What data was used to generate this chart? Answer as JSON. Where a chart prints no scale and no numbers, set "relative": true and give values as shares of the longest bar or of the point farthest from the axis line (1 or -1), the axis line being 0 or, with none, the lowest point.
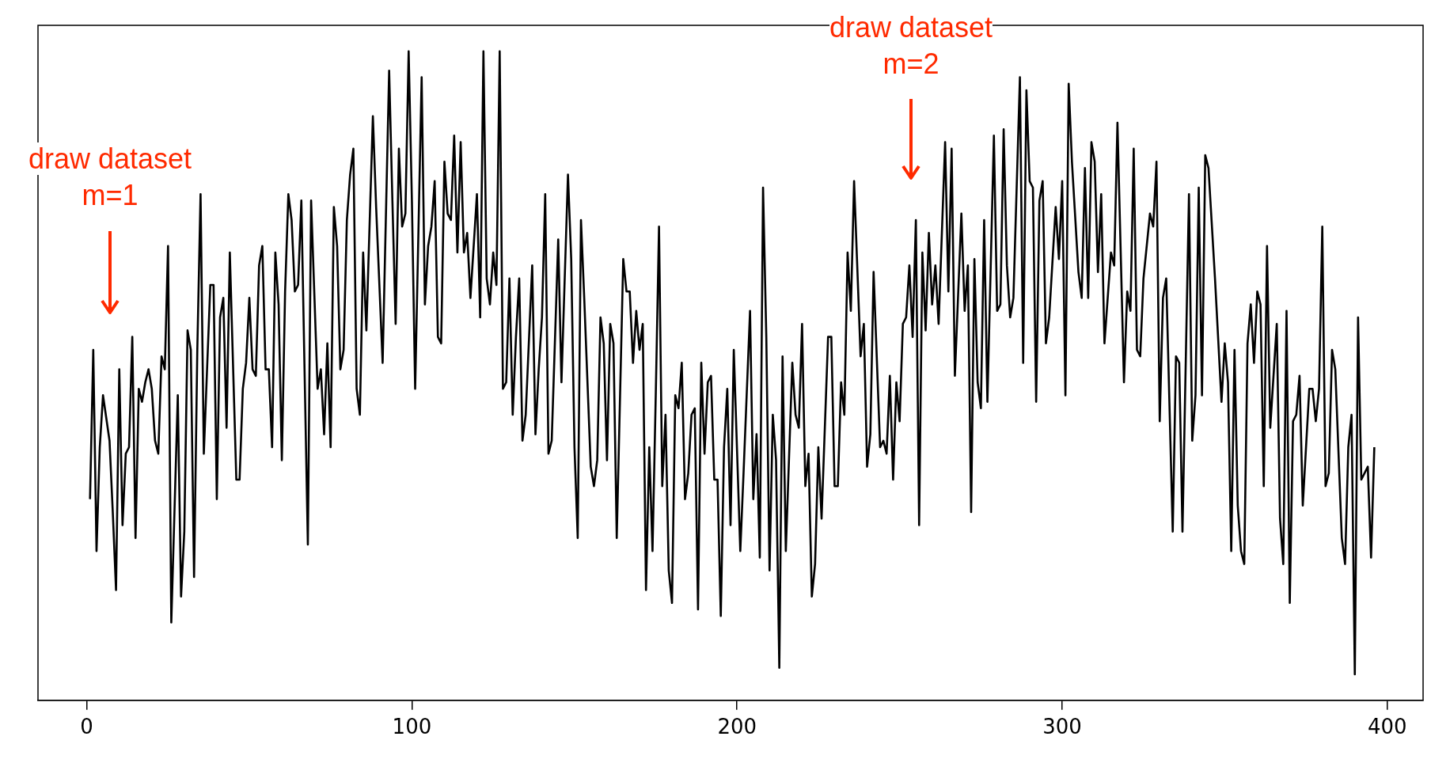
{
  "chart_data": {
    "type": "line",
    "relative": true,
    "color": "#000000",
    "marker": "none",
    "line_style": "solid",
    "grid": false,
    "legend": false,
    "x": [
      1,
      2,
      3,
      4,
      5,
      7,
      8,
      9,
      10,
      11,
      12,
      13,
      14,
      15,
      16,
      17,
      18,
      19,
      20,
      21,
      22,
      23,
      24,
      25,
      26,
      28,
      29,
      30,
      31,
      32,
      33,
      34,
      35,
      36,
      38,
      39,
      40,
      41,
      42,
      43,
      44,
      46,
      47,
      48,
      49,
      50,
      51,
      52,
      53,
      54,
      55,
      56,
      57,
      58,
      59,
      60,
      61,
      62,
      63,
      64,
      65,
      66,
      68,
      69,
      71,
      72,
      73,
      74,
      75,
      76,
      77,
      78,
      79,
      80,
      81,
      82,
      83,
      84,
      85,
      86,
      88,
      89,
      91,
      93,
      94,
      95,
      96,
      97,
      98,
      99,
      100,
      101,
      103,
      104,
      105,
      106,
      107,
      108,
      109,
      110,
      111,
      112,
      113,
      114,
      115,
      116,
      117,
      118,
      120,
      121,
      122,
      123,
      124,
      125,
      126,
      127,
      128,
      129,
      130,
      131,
      132,
      133,
      134,
      135,
      137,
      138,
      139,
      140,
      141,
      142,
      143,
      145,
      146,
      147,
      148,
      149,
      150,
      151,
      152,
      153,
      155,
      156,
      157,
      158,
      159,
      160,
      161,
      162,
      163,
      165,
      166,
      167,
      168,
      169,
      170,
      171,
      172,
      173,
      174,
      175,
      176,
      177,
      178,
      179,
      180,
      181,
      182,
      183,
      184,
      185,
      186,
      187,
      188,
      189,
      190,
      191,
      192,
      193,
      194,
      195,
      196,
      197,
      198,
      199,
      201,
      202,
      204,
      205,
      206,
      207,
      208,
      209,
      210,
      211,
      212,
      213,
      214,
      215,
      217,
      218,
      219,
      220,
      221,
      222,
      223,
      224,
      225,
      226,
      228,
      229,
      230,
      231,
      232,
      233,
      234,
      235,
      236,
      238,
      239,
      240,
      241,
      242,
      244,
      245,
      246,
      247,
      248,
      249,
      250,
      251,
      252,
      253,
      254,
      255,
      256,
      257,
      258,
      259,
      260,
      261,
      262,
      264,
      265,
      266,
      267,
      269,
      270,
      271,
      272,
      273,
      274,
      275,
      276,
      277,
      279,
      280,
      281,
      282,
      283,
      284,
      285,
      287,
      288,
      289,
      290,
      291,
      292,
      293,
      294,
      295,
      296,
      298,
      299,
      300,
      301,
      302,
      303,
      305,
      306,
      307,
      308,
      309,
      310,
      311,
      312,
      313,
      315,
      316,
      317,
      319,
      320,
      321,
      322,
      323,
      324,
      325,
      327,
      328,
      329,
      330,
      331,
      332,
      334,
      335,
      336,
      337,
      339,
      340,
      341,
      342,
      343,
      344,
      345,
      347,
      349,
      350,
      351,
      352,
      353,
      354,
      355,
      356,
      357,
      358,
      359,
      360,
      361,
      362,
      363,
      364,
      366,
      367,
      368,
      369,
      370,
      371,
      372,
      373,
      374,
      376,
      377,
      378,
      379,
      380,
      381,
      382,
      383,
      384,
      386,
      387,
      388,
      389,
      390,
      391,
      392,
      394,
      395,
      396
    ],
    "values": [
      0.31,
      0.54,
      0.23,
      0.39,
      0.47,
      0.4,
      0.29,
      0.17,
      0.51,
      0.27,
      0.38,
      0.39,
      0.56,
      0.25,
      0.48,
      0.46,
      0.49,
      0.51,
      0.48,
      0.4,
      0.38,
      0.53,
      0.51,
      0.7,
      0.12,
      0.47,
      0.16,
      0.26,
      0.57,
      0.54,
      0.19,
      0.54,
      0.78,
      0.38,
      0.64,
      0.64,
      0.31,
      0.59,
      0.62,
      0.42,
      0.69,
      0.34,
      0.34,
      0.48,
      0.52,
      0.62,
      0.51,
      0.5,
      0.67,
      0.7,
      0.51,
      0.51,
      0.39,
      0.69,
      0.61,
      0.37,
      0.63,
      0.78,
      0.74,
      0.63,
      0.64,
      0.77,
      0.24,
      0.77,
      0.48,
      0.51,
      0.41,
      0.55,
      0.39,
      0.76,
      0.7,
      0.51,
      0.54,
      0.74,
      0.81,
      0.85,
      0.48,
      0.44,
      0.69,
      0.57,
      0.9,
      0.76,
      0.52,
      0.97,
      0.77,
      0.58,
      0.85,
      0.73,
      0.75,
      1.0,
      0.77,
      0.48,
      0.96,
      0.61,
      0.7,
      0.73,
      0.8,
      0.56,
      0.55,
      0.83,
      0.75,
      0.74,
      0.87,
      0.69,
      0.86,
      0.69,
      0.72,
      0.62,
      0.78,
      0.59,
      1.0,
      0.65,
      0.61,
      0.69,
      0.64,
      1.0,
      0.48,
      0.49,
      0.65,
      0.44,
      0.56,
      0.65,
      0.4,
      0.44,
      0.67,
      0.41,
      0.51,
      0.59,
      0.78,
      0.38,
      0.4,
      0.71,
      0.49,
      0.65,
      0.81,
      0.68,
      0.39,
      0.25,
      0.74,
      0.62,
      0.36,
      0.33,
      0.37,
      0.59,
      0.55,
      0.37,
      0.58,
      0.55,
      0.25,
      0.68,
      0.63,
      0.63,
      0.52,
      0.6,
      0.54,
      0.58,
      0.17,
      0.39,
      0.23,
      0.47,
      0.73,
      0.33,
      0.44,
      0.2,
      0.15,
      0.47,
      0.45,
      0.52,
      0.31,
      0.35,
      0.44,
      0.45,
      0.14,
      0.52,
      0.38,
      0.49,
      0.5,
      0.34,
      0.34,
      0.13,
      0.39,
      0.48,
      0.27,
      0.54,
      0.23,
      0.35,
      0.6,
      0.31,
      0.41,
      0.22,
      0.79,
      0.56,
      0.2,
      0.44,
      0.37,
      0.05,
      0.53,
      0.23,
      0.52,
      0.44,
      0.42,
      0.58,
      0.33,
      0.38,
      0.16,
      0.21,
      0.39,
      0.28,
      0.56,
      0.56,
      0.33,
      0.33,
      0.49,
      0.44,
      0.69,
      0.6,
      0.8,
      0.53,
      0.58,
      0.36,
      0.41,
      0.66,
      0.39,
      0.4,
      0.38,
      0.5,
      0.34,
      0.49,
      0.43,
      0.58,
      0.59,
      0.67,
      0.56,
      0.74,
      0.27,
      0.69,
      0.57,
      0.72,
      0.61,
      0.67,
      0.58,
      0.86,
      0.63,
      0.85,
      0.5,
      0.75,
      0.6,
      0.67,
      0.29,
      0.68,
      0.49,
      0.45,
      0.74,
      0.46,
      0.87,
      0.6,
      0.61,
      0.88,
      0.67,
      0.59,
      0.62,
      0.96,
      0.52,
      0.94,
      0.8,
      0.79,
      0.46,
      0.77,
      0.8,
      0.55,
      0.59,
      0.76,
      0.68,
      0.8,
      0.47,
      0.95,
      0.83,
      0.66,
      0.62,
      0.82,
      0.62,
      0.86,
      0.83,
      0.66,
      0.78,
      0.55,
      0.69,
      0.67,
      0.89,
      0.49,
      0.63,
      0.6,
      0.85,
      0.54,
      0.53,
      0.65,
      0.75,
      0.73,
      0.83,
      0.43,
      0.62,
      0.65,
      0.26,
      0.53,
      0.52,
      0.26,
      0.78,
      0.4,
      0.47,
      0.79,
      0.47,
      0.84,
      0.82,
      0.65,
      0.46,
      0.55,
      0.49,
      0.23,
      0.54,
      0.3,
      0.23,
      0.21,
      0.55,
      0.61,
      0.52,
      0.63,
      0.61,
      0.33,
      0.7,
      0.42,
      0.58,
      0.28,
      0.21,
      0.6,
      0.15,
      0.43,
      0.44,
      0.5,
      0.3,
      0.48,
      0.48,
      0.43,
      0.48,
      0.73,
      0.33,
      0.35,
      0.54,
      0.51,
      0.25,
      0.21,
      0.39,
      0.44,
      0.04,
      0.59,
      0.34,
      0.36,
      0.22,
      0.39
    ],
    "xlim": [
      -15,
      411
    ],
    "xticks": [
      0,
      100,
      200,
      300,
      400
    ],
    "annotations": [
      "draw dataset m=1",
      "draw dataset m=2"
    ]
  }
}
